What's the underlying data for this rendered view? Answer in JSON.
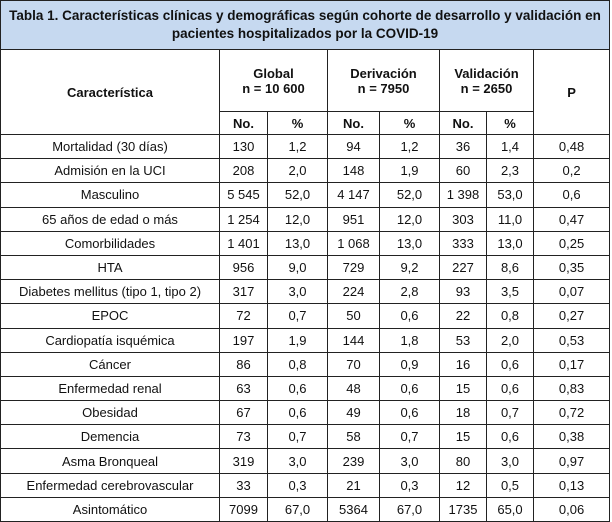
{
  "title": "Tabla 1. Características clínicas y demográficas según cohorte de desarrollo y validación en pacientes hospitalizados por la COVID-19",
  "header": {
    "characteristic": "Característica",
    "groups": [
      {
        "name": "Global",
        "n": "n = 10 600"
      },
      {
        "name": "Derivación",
        "n": "n = 7950"
      },
      {
        "name": "Validación",
        "n": "n = 2650"
      }
    ],
    "p": "P",
    "subheaders": [
      "No.",
      "%",
      "No.",
      "%",
      "No.",
      "%"
    ]
  },
  "rows": [
    [
      "Mortalidad (30 días)",
      "130",
      "1,2",
      "94",
      "1,2",
      "36",
      "1,4",
      "0,48"
    ],
    [
      "Admisión en la UCI",
      "208",
      "2,0",
      "148",
      "1,9",
      "60",
      "2,3",
      "0,2"
    ],
    [
      "Masculino",
      "5 545",
      "52,0",
      "4 147",
      "52,0",
      "1 398",
      "53,0",
      "0,6"
    ],
    [
      "65 años de edad o más",
      "1 254",
      "12,0",
      "951",
      "12,0",
      "303",
      "11,0",
      "0,47"
    ],
    [
      "Comorbilidades",
      "1 401",
      "13,0",
      "1 068",
      "13,0",
      "333",
      "13,0",
      "0,25"
    ],
    [
      "HTA",
      "956",
      "9,0",
      "729",
      "9,2",
      "227",
      "8,6",
      "0,35"
    ],
    [
      "Diabetes mellitus (tipo 1, tipo 2)",
      "317",
      "3,0",
      "224",
      "2,8",
      "93",
      "3,5",
      "0,07"
    ],
    [
      "EPOC",
      "72",
      "0,7",
      "50",
      "0,6",
      "22",
      "0,8",
      "0,27"
    ],
    [
      "Cardiopatía isquémica",
      "197",
      "1,9",
      "144",
      "1,8",
      "53",
      "2,0",
      "0,53"
    ],
    [
      "Cáncer",
      "86",
      "0,8",
      "70",
      "0,9",
      "16",
      "0,6",
      "0,17"
    ],
    [
      "Enfermedad renal",
      "63",
      "0,6",
      "48",
      "0,6",
      "15",
      "0,6",
      "0,83"
    ],
    [
      "Obesidad",
      "67",
      "0,6",
      "49",
      "0,6",
      "18",
      "0,7",
      "0,72"
    ],
    [
      "Demencia",
      "73",
      "0,7",
      "58",
      "0,7",
      "15",
      "0,6",
      "0,38"
    ],
    [
      "Asma Bronqueal",
      "319",
      "3,0",
      "239",
      "3,0",
      "80",
      "3,0",
      "0,97"
    ],
    [
      "Enfermedad cerebrovascular",
      "33",
      "0,3",
      "21",
      "0,3",
      "12",
      "0,5",
      "0,13"
    ],
    [
      "Asintomático",
      "7099",
      "67,0",
      "5364",
      "67,0",
      "1735",
      "65,0",
      "0,06"
    ]
  ]
}
